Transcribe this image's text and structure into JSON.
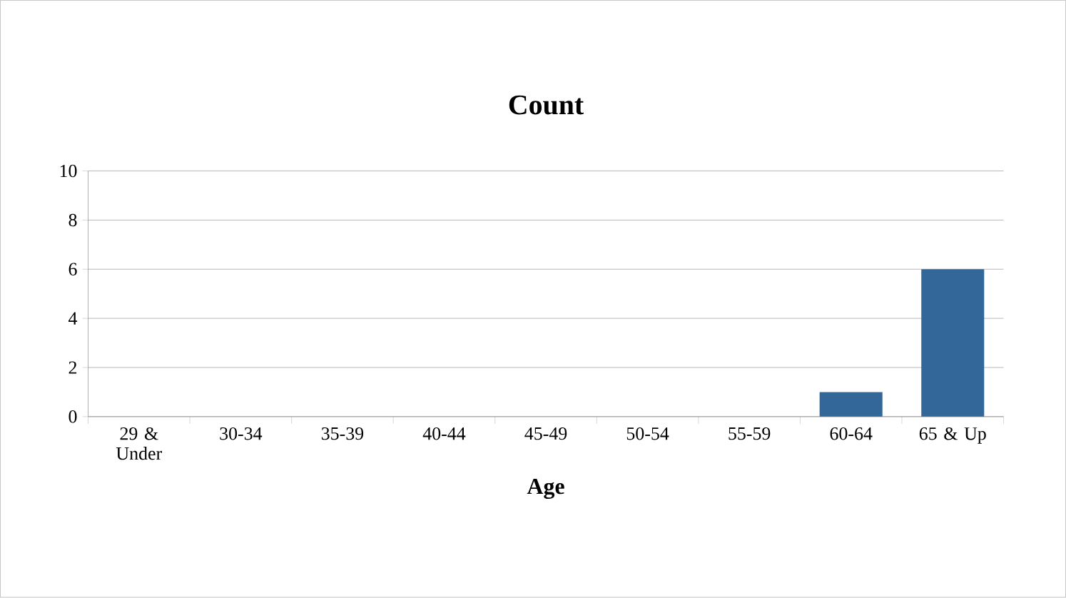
{
  "chart_data": {
    "type": "bar",
    "title": "Count",
    "xlabel": "Age",
    "categories": [
      "29 & Under",
      "30-34",
      "35-39",
      "40-44",
      "45-49",
      "50-54",
      "55-59",
      "60-64",
      "65 & Up"
    ],
    "values": [
      0,
      0,
      0,
      0,
      0,
      0,
      0,
      1,
      6
    ],
    "color": "#336699",
    "ylim": [
      0,
      10
    ],
    "yticks": [
      0,
      2,
      4,
      6,
      8,
      10
    ],
    "grid": "y"
  }
}
